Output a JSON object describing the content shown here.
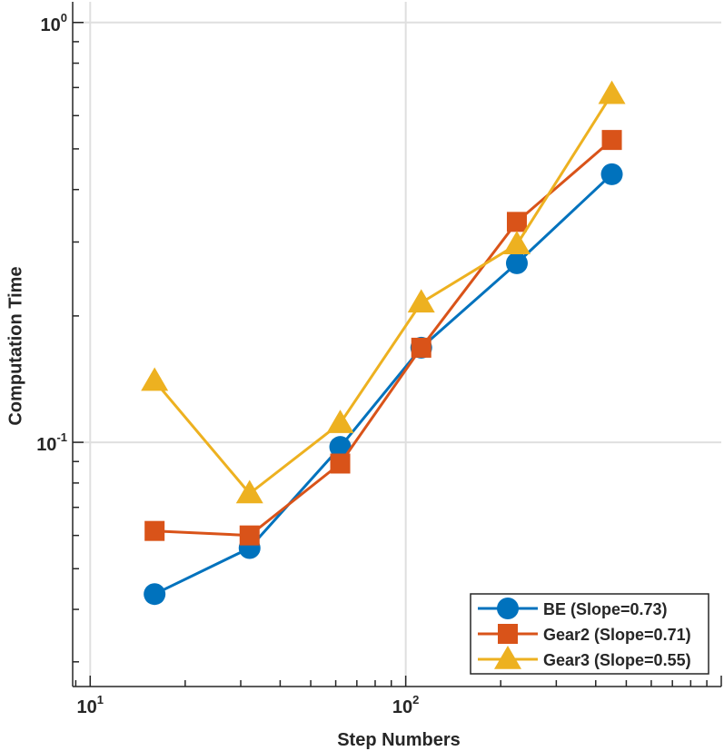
{
  "chart_data": {
    "type": "line",
    "title": "",
    "xlabel": "Step Numbers",
    "ylabel": "Computation Time",
    "xscale": "log",
    "yscale": "log",
    "xlim": [
      8.8,
      1000
    ],
    "ylim": [
      0.0262,
      1.12
    ],
    "grid": true,
    "legend_position": "bottom-right",
    "x_ticks": [
      {
        "value": 10,
        "base": "10",
        "exp": "1"
      },
      {
        "value": 100,
        "base": "10",
        "exp": "2"
      }
    ],
    "y_ticks": [
      {
        "value": 0.1,
        "base": "10",
        "exp": "-1"
      },
      {
        "value": 1,
        "base": "10",
        "exp": "0"
      }
    ],
    "x": [
      16,
      32,
      62,
      112,
      225,
      450
    ],
    "series": [
      {
        "name": "BE (Slope=0.73)",
        "marker": "circle",
        "color": "#0072BD",
        "values": [
          0.0435,
          0.056,
          0.0975,
          0.168,
          0.267,
          0.435
        ]
      },
      {
        "name": "Gear2 (Slope=0.71)",
        "marker": "square",
        "color": "#D95319",
        "values": [
          0.0615,
          0.06,
          0.089,
          0.168,
          0.335,
          0.525
        ]
      },
      {
        "name": "Gear3 (Slope=0.55)",
        "marker": "triangle",
        "color": "#EDB120",
        "values": [
          0.14,
          0.0755,
          0.111,
          0.215,
          0.296,
          0.675
        ]
      }
    ]
  }
}
